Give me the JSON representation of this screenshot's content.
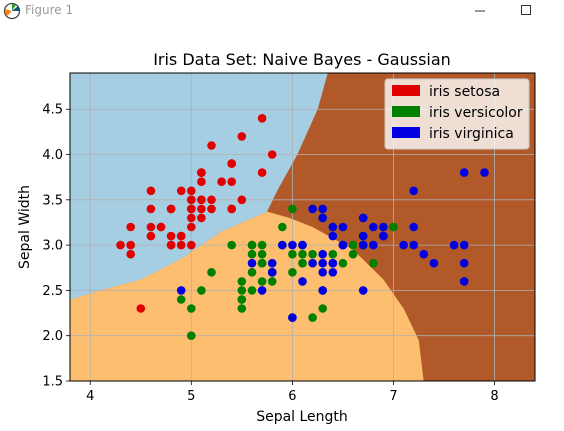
{
  "window": {
    "title": "Figure 1",
    "icon": "matplotlib-logo-icon",
    "buttons": [
      "minimize-icon",
      "maximize-icon"
    ]
  },
  "colors": {
    "setosa_region": "#a6cee3",
    "versicolor_region": "#fdbf6f",
    "virginica_region": "#b15928",
    "setosa_point": "#e00000",
    "versicolor_point": "#008000",
    "virginica_point": "#0000e0"
  },
  "chart_data": {
    "type": "scatter",
    "title": "Iris Data Set: Naive Bayes - Gaussian",
    "xlabel": "Sepal Length",
    "ylabel": "Sepal Width",
    "xlim": [
      3.8,
      8.4
    ],
    "ylim": [
      1.5,
      4.9
    ],
    "xticks": [
      "4",
      "5",
      "6",
      "7",
      "8"
    ],
    "yticks": [
      "1.5",
      "2.0",
      "2.5",
      "3.0",
      "3.5",
      "4.0",
      "4.5"
    ],
    "grid": true,
    "legend_position": "top-right",
    "legend": [
      "iris setosa",
      "iris versicolor",
      "iris virginica"
    ],
    "background": "decision regions of a Gaussian Naive Bayes classifier",
    "series": [
      {
        "name": "iris setosa",
        "points": [
          [
            5.1,
            3.5
          ],
          [
            4.9,
            3.0
          ],
          [
            4.7,
            3.2
          ],
          [
            4.6,
            3.1
          ],
          [
            5.0,
            3.6
          ],
          [
            5.4,
            3.9
          ],
          [
            4.6,
            3.4
          ],
          [
            5.0,
            3.4
          ],
          [
            4.4,
            2.9
          ],
          [
            4.9,
            3.1
          ],
          [
            5.4,
            3.7
          ],
          [
            4.8,
            3.4
          ],
          [
            4.8,
            3.0
          ],
          [
            4.3,
            3.0
          ],
          [
            5.8,
            4.0
          ],
          [
            5.7,
            4.4
          ],
          [
            5.4,
            3.9
          ],
          [
            5.1,
            3.5
          ],
          [
            5.7,
            3.8
          ],
          [
            5.1,
            3.8
          ],
          [
            5.4,
            3.4
          ],
          [
            5.1,
            3.7
          ],
          [
            4.6,
            3.6
          ],
          [
            5.1,
            3.3
          ],
          [
            4.8,
            3.4
          ],
          [
            5.0,
            3.0
          ],
          [
            5.0,
            3.4
          ],
          [
            5.2,
            3.5
          ],
          [
            5.2,
            3.4
          ],
          [
            4.7,
            3.2
          ],
          [
            4.8,
            3.1
          ],
          [
            5.4,
            3.4
          ],
          [
            5.2,
            4.1
          ],
          [
            5.5,
            4.2
          ],
          [
            4.9,
            3.1
          ],
          [
            5.0,
            3.2
          ],
          [
            5.5,
            3.5
          ],
          [
            4.9,
            3.6
          ],
          [
            4.4,
            3.0
          ],
          [
            5.1,
            3.4
          ],
          [
            5.0,
            3.5
          ],
          [
            4.5,
            2.3
          ],
          [
            4.4,
            3.2
          ],
          [
            5.0,
            3.5
          ],
          [
            5.1,
            3.8
          ],
          [
            4.8,
            3.0
          ],
          [
            5.1,
            3.8
          ],
          [
            4.6,
            3.2
          ],
          [
            5.3,
            3.7
          ],
          [
            5.0,
            3.3
          ]
        ]
      },
      {
        "name": "iris versicolor",
        "points": [
          [
            7.0,
            3.2
          ],
          [
            6.4,
            3.2
          ],
          [
            6.9,
            3.1
          ],
          [
            5.5,
            2.3
          ],
          [
            6.5,
            2.8
          ],
          [
            5.7,
            2.8
          ],
          [
            6.3,
            3.3
          ],
          [
            4.9,
            2.4
          ],
          [
            6.6,
            2.9
          ],
          [
            5.2,
            2.7
          ],
          [
            5.0,
            2.0
          ],
          [
            5.9,
            3.0
          ],
          [
            6.0,
            2.2
          ],
          [
            6.1,
            2.9
          ],
          [
            5.6,
            2.9
          ],
          [
            6.7,
            3.1
          ],
          [
            5.6,
            3.0
          ],
          [
            5.8,
            2.7
          ],
          [
            6.2,
            2.2
          ],
          [
            5.6,
            2.5
          ],
          [
            5.9,
            3.2
          ],
          [
            6.1,
            2.8
          ],
          [
            6.3,
            2.5
          ],
          [
            6.1,
            2.8
          ],
          [
            6.4,
            2.9
          ],
          [
            6.6,
            3.0
          ],
          [
            6.8,
            2.8
          ],
          [
            6.7,
            3.0
          ],
          [
            6.0,
            2.9
          ],
          [
            5.7,
            2.6
          ],
          [
            5.5,
            2.4
          ],
          [
            5.5,
            2.4
          ],
          [
            5.8,
            2.7
          ],
          [
            6.0,
            2.7
          ],
          [
            5.4,
            3.0
          ],
          [
            6.0,
            3.4
          ],
          [
            6.7,
            3.1
          ],
          [
            6.3,
            2.3
          ],
          [
            5.6,
            3.0
          ],
          [
            5.5,
            2.5
          ],
          [
            5.5,
            2.6
          ],
          [
            6.1,
            3.0
          ],
          [
            5.8,
            2.6
          ],
          [
            5.0,
            2.3
          ],
          [
            5.6,
            2.7
          ],
          [
            5.7,
            3.0
          ],
          [
            5.7,
            2.9
          ],
          [
            6.2,
            2.9
          ],
          [
            5.1,
            2.5
          ],
          [
            5.7,
            2.8
          ]
        ]
      },
      {
        "name": "iris virginica",
        "points": [
          [
            6.3,
            3.3
          ],
          [
            5.8,
            2.7
          ],
          [
            7.1,
            3.0
          ],
          [
            6.3,
            2.9
          ],
          [
            6.5,
            3.0
          ],
          [
            7.6,
            3.0
          ],
          [
            4.9,
            2.5
          ],
          [
            7.3,
            2.9
          ],
          [
            6.7,
            2.5
          ],
          [
            7.2,
            3.6
          ],
          [
            6.5,
            3.2
          ],
          [
            6.4,
            2.7
          ],
          [
            6.8,
            3.0
          ],
          [
            5.7,
            2.5
          ],
          [
            5.8,
            2.8
          ],
          [
            6.4,
            3.2
          ],
          [
            6.5,
            3.0
          ],
          [
            7.7,
            3.8
          ],
          [
            7.7,
            2.6
          ],
          [
            6.0,
            2.2
          ],
          [
            6.9,
            3.2
          ],
          [
            5.6,
            2.8
          ],
          [
            7.7,
            2.8
          ],
          [
            6.3,
            2.7
          ],
          [
            6.7,
            3.3
          ],
          [
            7.2,
            3.2
          ],
          [
            6.2,
            2.8
          ],
          [
            6.1,
            3.0
          ],
          [
            6.4,
            2.8
          ],
          [
            7.2,
            3.0
          ],
          [
            7.4,
            2.8
          ],
          [
            7.9,
            3.8
          ],
          [
            6.4,
            2.8
          ],
          [
            6.3,
            2.8
          ],
          [
            6.1,
            2.6
          ],
          [
            7.7,
            3.0
          ],
          [
            6.3,
            3.4
          ],
          [
            6.4,
            3.1
          ],
          [
            6.0,
            3.0
          ],
          [
            6.9,
            3.1
          ],
          [
            6.7,
            3.1
          ],
          [
            6.9,
            3.1
          ],
          [
            5.8,
            2.7
          ],
          [
            6.8,
            3.2
          ],
          [
            6.7,
            3.3
          ],
          [
            6.7,
            3.0
          ],
          [
            6.3,
            2.5
          ],
          [
            6.5,
            3.0
          ],
          [
            6.2,
            3.4
          ],
          [
            5.9,
            3.0
          ]
        ]
      }
    ]
  }
}
